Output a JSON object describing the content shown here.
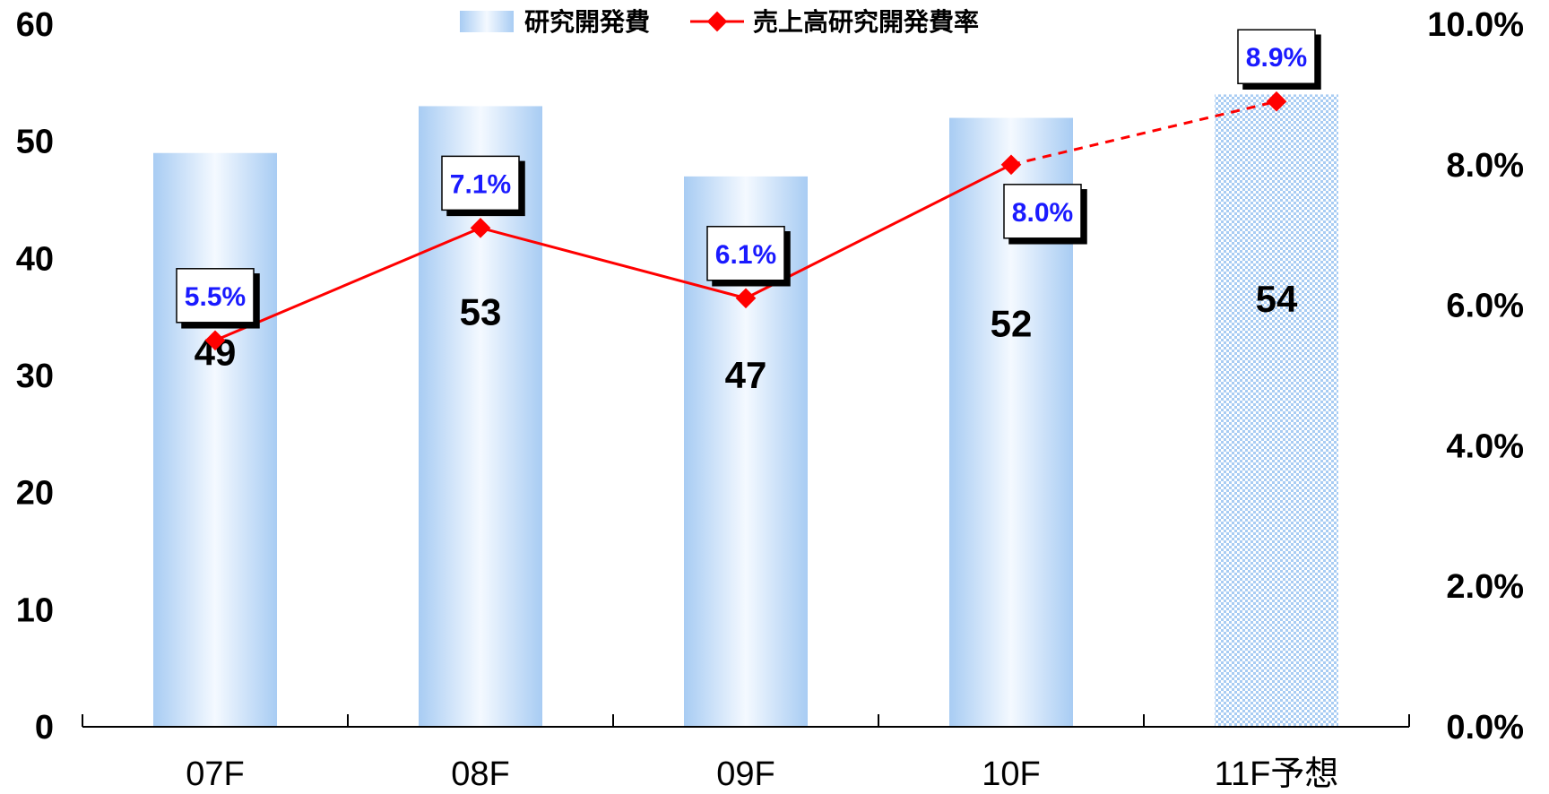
{
  "chart_data": {
    "type": "bar",
    "categories": [
      "07F",
      "08F",
      "09F",
      "10F",
      "11F予想"
    ],
    "series": [
      {
        "name": "研究開発費",
        "type": "bar",
        "axis": "left",
        "values": [
          49,
          53,
          47,
          52,
          54
        ],
        "forecast_index": 4,
        "color": "#a9cdf4"
      },
      {
        "name": "売上高研究開発費率",
        "type": "line",
        "axis": "right",
        "values": [
          5.5,
          7.1,
          6.1,
          8.0,
          8.9
        ],
        "labels": [
          "5.5%",
          "7.1%",
          "6.1%",
          "8.0%",
          "8.9%"
        ],
        "forecast_index": 4,
        "color": "#ff0000"
      }
    ],
    "y_left": {
      "lim": [
        0,
        60
      ],
      "ticks": [
        "0",
        "10",
        "20",
        "30",
        "40",
        "50",
        "60"
      ]
    },
    "y_right": {
      "lim": [
        0,
        10
      ],
      "ticks": [
        "0.0%",
        "2.0%",
        "4.0%",
        "6.0%",
        "8.0%",
        "10.0%"
      ]
    },
    "legend_position": "top-center",
    "grid": false,
    "label_color": "#1a1aff"
  }
}
